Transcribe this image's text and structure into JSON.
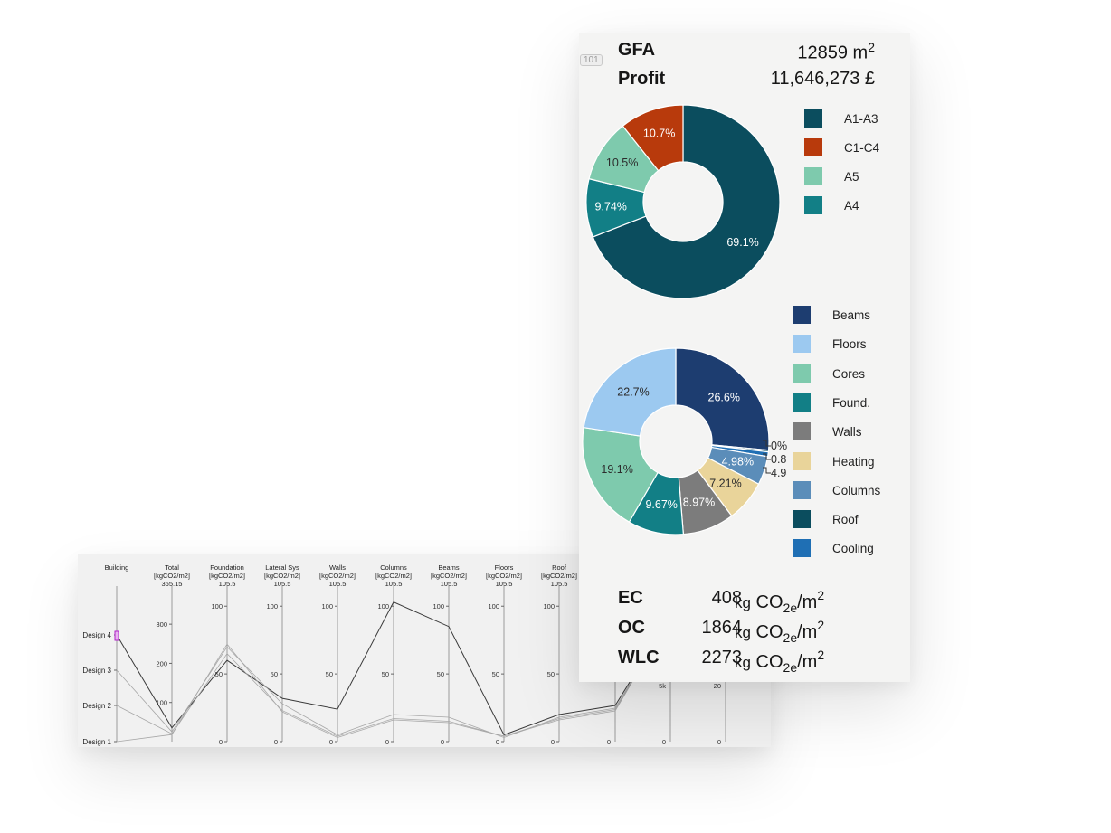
{
  "parallel_axes_headers": [
    {
      "name": "Building",
      "unit": "",
      "value": ""
    },
    {
      "name": "Total",
      "unit": "[kgCO2/m2]",
      "value": "365.15"
    },
    {
      "name": "Foundation",
      "unit": "[kgCO2/m2]",
      "value": "105.5"
    },
    {
      "name": "Lateral Sys",
      "unit": "[kgCO2/m2]",
      "value": "105.5"
    },
    {
      "name": "Walls",
      "unit": "[kgCO2/m2]",
      "value": "105.5"
    },
    {
      "name": "Columns",
      "unit": "[kgCO2/m2]",
      "value": "105.5"
    },
    {
      "name": "Beams",
      "unit": "[kgCO2/m2]",
      "value": "105.5"
    },
    {
      "name": "Floors",
      "unit": "[kgCO2/m2]",
      "value": "105.5"
    },
    {
      "name": "Roof",
      "unit": "[kgCO2/m2]",
      "value": "105.5"
    }
  ],
  "map_sign": "101",
  "metrics": {
    "gfa_label": "GFA",
    "gfa_value": "12859",
    "gfa_unit": "m",
    "gfa_unit_power": "2",
    "profit_label": "Profit",
    "profit_value": "11,646,273 £"
  },
  "carbon": [
    {
      "label": "EC",
      "value": "408"
    },
    {
      "label": "OC",
      "value": "1864"
    },
    {
      "label": "WLC",
      "value": "2273"
    }
  ],
  "carbon_unit": {
    "kg": "kg",
    "base": "CO",
    "sub": "2e",
    "per": "/m",
    "power": "2"
  },
  "chart_data": [
    {
      "type": "line",
      "subtype": "parallel_coordinates",
      "axes": [
        "Building",
        "Total",
        "Foundation",
        "Lateral Sys",
        "Walls",
        "Columns",
        "Beams",
        "Floors",
        "Roof"
      ],
      "axis_units": [
        "",
        "[kgCO2/m2]",
        "[kgCO2/m2]",
        "[kgCO2/m2]",
        "[kgCO2/m2]",
        "[kgCO2/m2]",
        "[kgCO2/m2]",
        "[kgCO2/m2]",
        "[kgCO2/m2]"
      ],
      "building_categories": [
        "Design 1",
        "Design 2",
        "Design 3",
        "Design 4"
      ],
      "axis_ticks": {
        "Total": [
          100,
          200,
          300
        ],
        "Foundation": [
          0,
          50,
          100
        ],
        "Lateral Sys": [
          0,
          50,
          100
        ],
        "Walls": [
          0,
          50,
          100
        ],
        "Columns": [
          0,
          50,
          100
        ],
        "Beams": [
          0,
          50,
          100
        ],
        "Floors": [
          0,
          50,
          100
        ],
        "Roof": [
          0,
          50,
          100
        ]
      },
      "extra_ticks": [
        {
          "axis": "partial-1",
          "ticks": [
            "0"
          ]
        },
        {
          "axis": "partial-2",
          "ticks": [
            "5k",
            "0"
          ]
        },
        {
          "axis": "partial-3",
          "ticks": [
            "20",
            "0"
          ]
        }
      ],
      "ylim": {
        "Total": [
          0,
          365
        ],
        "others": [
          0,
          105.5
        ]
      },
      "series": [
        {
          "building": "Design 4",
          "values": [
            365,
            35,
            60,
            32,
            24,
            103,
            85,
            5,
            20
          ],
          "highlight": true
        },
        {
          "building": "Design 3",
          "values": [
            175,
            25,
            70,
            28,
            5,
            20,
            18,
            3,
            18
          ]
        },
        {
          "building": "Design 2",
          "values": [
            165,
            20,
            65,
            23,
            4,
            17,
            15,
            4,
            17
          ]
        },
        {
          "building": "Design 1",
          "values": [
            150,
            18,
            72,
            22,
            3,
            16,
            14,
            4,
            16
          ]
        }
      ]
    },
    {
      "type": "pie",
      "donut": true,
      "slices": [
        {
          "name": "A1-A3",
          "value": 69.1,
          "label": "69.1%",
          "color": "#0b4d5e"
        },
        {
          "name": "A4",
          "value": 9.74,
          "label": "9.74%",
          "color": "#127f86"
        },
        {
          "name": "A5",
          "value": 10.5,
          "label": "10.5%",
          "color": "#7ecaad"
        },
        {
          "name": "C1-C4",
          "value": 10.7,
          "label": "10.7%",
          "color": "#b83a0c"
        }
      ],
      "legend": [
        "A1-A3",
        "C1-C4",
        "A5",
        "A4"
      ],
      "legend_position": "right"
    },
    {
      "type": "pie",
      "donut": true,
      "slices": [
        {
          "name": "Beams",
          "value": 26.6,
          "label": "26.6%",
          "color": "#1d3d70"
        },
        {
          "name": "Roof",
          "value": 0.3,
          "label": "0%",
          "color": "#0b4d5e"
        },
        {
          "name": "Cooling",
          "value": 0.81,
          "label": "0.81",
          "color": "#1f6fb4"
        },
        {
          "name": "Columns",
          "value": 4.98,
          "label": "4.98%",
          "color": "#5b8db9"
        },
        {
          "name": "Heating",
          "value": 7.21,
          "label": "7.21%",
          "color": "#e9d49a"
        },
        {
          "name": "Walls",
          "value": 8.97,
          "label": "8.97%",
          "color": "#7c7c7c"
        },
        {
          "name": "Found.",
          "value": 9.67,
          "label": "9.67%",
          "color": "#127f86"
        },
        {
          "name": "Cores",
          "value": 19.1,
          "label": "19.1%",
          "color": "#7ecaad"
        },
        {
          "name": "Floors",
          "value": 22.7,
          "label": "22.7%",
          "color": "#9cc9f0"
        }
      ],
      "legend": [
        "Beams",
        "Floors",
        "Cores",
        "Found.",
        "Walls",
        "Heating",
        "Columns",
        "Roof",
        "Cooling"
      ],
      "legend_position": "right"
    }
  ]
}
